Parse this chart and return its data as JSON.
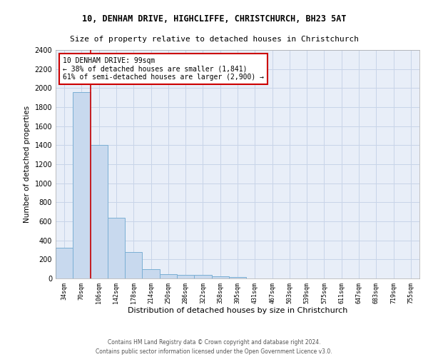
{
  "title_line1": "10, DENHAM DRIVE, HIGHCLIFFE, CHRISTCHURCH, BH23 5AT",
  "title_line2": "Size of property relative to detached houses in Christchurch",
  "xlabel": "Distribution of detached houses by size in Christchurch",
  "ylabel": "Number of detached properties",
  "footnote1": "Contains HM Land Registry data © Crown copyright and database right 2024.",
  "footnote2": "Contains public sector information licensed under the Open Government Licence v3.0.",
  "bar_labels": [
    "34sqm",
    "70sqm",
    "106sqm",
    "142sqm",
    "178sqm",
    "214sqm",
    "250sqm",
    "286sqm",
    "322sqm",
    "358sqm",
    "395sqm",
    "431sqm",
    "467sqm",
    "503sqm",
    "539sqm",
    "575sqm",
    "611sqm",
    "647sqm",
    "683sqm",
    "719sqm",
    "755sqm"
  ],
  "bar_values": [
    325,
    1960,
    1400,
    640,
    275,
    100,
    48,
    38,
    38,
    22,
    18,
    0,
    0,
    0,
    0,
    0,
    0,
    0,
    0,
    0,
    0
  ],
  "bar_color": "#c8d9ee",
  "bar_edge_color": "#7bafd4",
  "grid_color": "#c8d4e8",
  "background_color": "#e8eef8",
  "annotation_text": "10 DENHAM DRIVE: 99sqm\n← 38% of detached houses are smaller (1,841)\n61% of semi-detached houses are larger (2,900) →",
  "vline_x": 1.5,
  "vline_color": "#cc0000",
  "annotation_box_color": "#cc0000",
  "ylim": [
    0,
    2400
  ],
  "yticks": [
    0,
    200,
    400,
    600,
    800,
    1000,
    1200,
    1400,
    1600,
    1800,
    2000,
    2200,
    2400
  ]
}
